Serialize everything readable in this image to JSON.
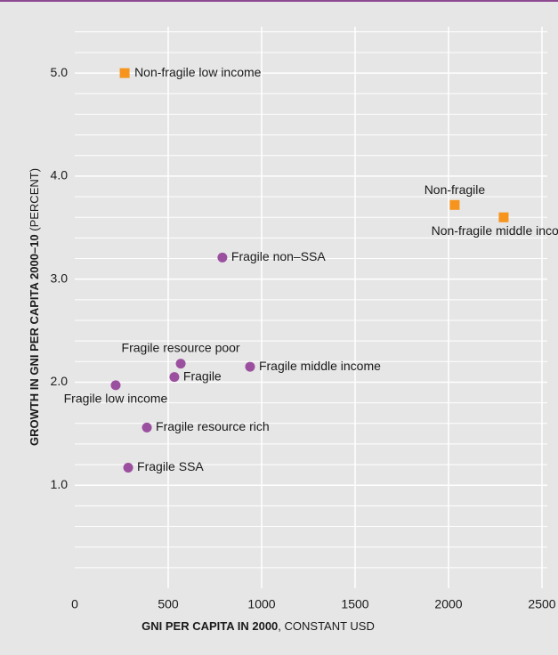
{
  "chart_data": {
    "type": "scatter",
    "x_label": [
      "GNI PER CAPITA IN 2000",
      ", CONSTANT USD"
    ],
    "y_label": [
      "GROWTH IN GNI PER CAPITA 2000–10",
      " (PERCENT)"
    ],
    "xlim": [
      0,
      2500
    ],
    "xticks": [
      0,
      500,
      1000,
      1500,
      2000,
      2500
    ],
    "ylim": [
      0,
      5.45
    ],
    "yticks": [
      {
        "value": 1,
        "label": "1.0"
      },
      {
        "value": 2,
        "label": "2.0"
      },
      {
        "value": 3,
        "label": "3.0"
      },
      {
        "value": 4,
        "label": "4.0"
      },
      {
        "value": 5,
        "label": "5.0"
      }
    ],
    "y_minor_ticks": [
      0.2,
      0.4,
      0.6,
      0.8,
      1.2,
      1.4,
      1.6,
      1.8,
      2.2,
      2.4,
      2.6,
      2.8,
      3.2,
      3.4,
      3.6,
      3.8,
      4.2,
      4.4,
      4.6,
      4.8,
      5.2,
      5.4
    ],
    "grid": true,
    "series": [
      {
        "marker": "square",
        "color": "#f7941d",
        "labels": [
          "Non-fragile low income",
          "Non-fragile",
          "Non-fragile middle income"
        ],
        "x": [
          267,
          2033,
          2295
        ],
        "values": [
          5.0,
          3.72,
          3.6
        ]
      },
      {
        "marker": "circle",
        "color": "#9b4f9f",
        "labels": [
          "Fragile non–SSA",
          "Fragile resource poor",
          "Fragile middle income",
          "Fragile",
          "Fragile low income",
          "Fragile resource rich",
          "Fragile SSA"
        ],
        "x": [
          790,
          567,
          938,
          533,
          219,
          386,
          286
        ],
        "values": [
          3.21,
          2.18,
          2.15,
          2.05,
          1.97,
          1.56,
          1.17
        ]
      }
    ]
  }
}
